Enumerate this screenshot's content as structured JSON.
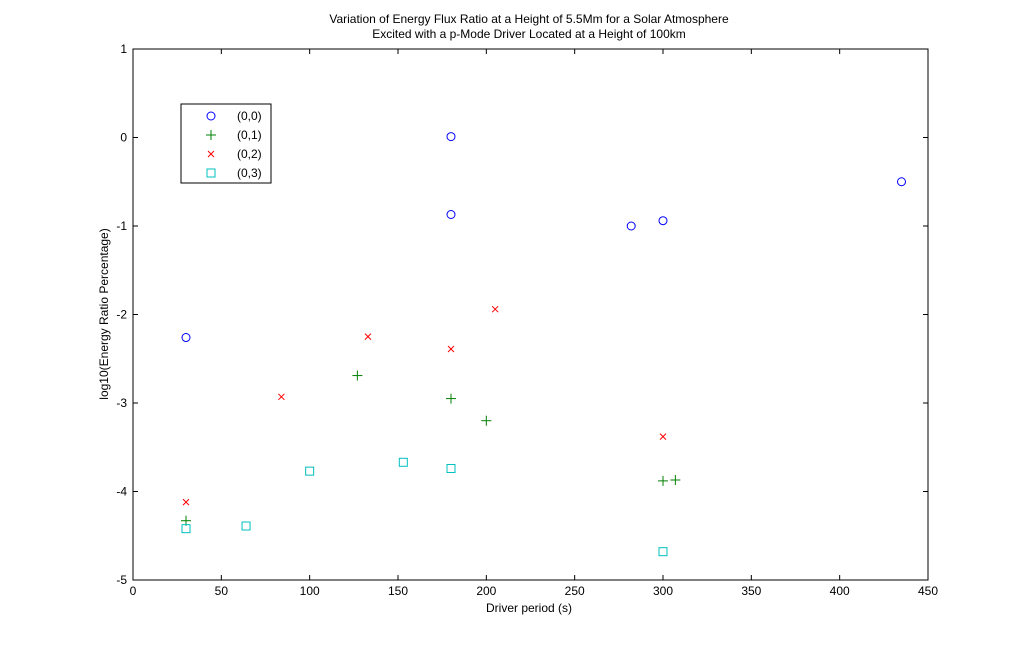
{
  "chart_data": {
    "type": "scatter",
    "title": "Variation of Energy Flux Ratio at a Height of 5.5Mm for a Solar Atmosphere",
    "subtitle": "Excited with a p-Mode Driver Located at a Height of 100km",
    "xlabel": "Driver period (s)",
    "ylabel": "log10(Energy Ratio Percentage)",
    "xlim": [
      0,
      450
    ],
    "ylim": [
      -5,
      1
    ],
    "xticks": [
      0,
      50,
      100,
      150,
      200,
      250,
      300,
      350,
      400,
      450
    ],
    "yticks": [
      -5,
      -4,
      -3,
      -2,
      -1,
      0,
      1
    ],
    "xtick_labels": [
      "0",
      "50",
      "100",
      "150",
      "200",
      "250",
      "300",
      "350",
      "400",
      "450"
    ],
    "ytick_labels": [
      "-5",
      "-4",
      "-3",
      "-2",
      "-1",
      "0",
      "1"
    ],
    "grid": false,
    "legend_position": "top-left",
    "series": [
      {
        "name": "(0,0)",
        "marker": "circle",
        "color": "#0000ff",
        "points": [
          [
            30,
            -2.26
          ],
          [
            180,
            0.01
          ],
          [
            180,
            -0.87
          ],
          [
            282,
            -1.0
          ],
          [
            300,
            -0.94
          ],
          [
            435,
            -0.5
          ]
        ]
      },
      {
        "name": "(0,1)",
        "marker": "plus",
        "color": "#008000",
        "points": [
          [
            30,
            -4.33
          ],
          [
            127,
            -2.69
          ],
          [
            180,
            -2.95
          ],
          [
            200,
            -3.2
          ],
          [
            300,
            -3.88
          ],
          [
            307,
            -3.87
          ]
        ]
      },
      {
        "name": "(0,2)",
        "marker": "x",
        "color": "#ff0000",
        "points": [
          [
            30,
            -4.12
          ],
          [
            84,
            -2.93
          ],
          [
            133,
            -2.25
          ],
          [
            180,
            -2.39
          ],
          [
            205,
            -1.94
          ],
          [
            300,
            -3.38
          ]
        ]
      },
      {
        "name": "(0,3)",
        "marker": "square",
        "color": "#00bfbf",
        "points": [
          [
            30,
            -4.42
          ],
          [
            64,
            -4.39
          ],
          [
            100,
            -3.77
          ],
          [
            153,
            -3.67
          ],
          [
            180,
            -3.74
          ],
          [
            300,
            -4.68
          ]
        ]
      }
    ]
  }
}
